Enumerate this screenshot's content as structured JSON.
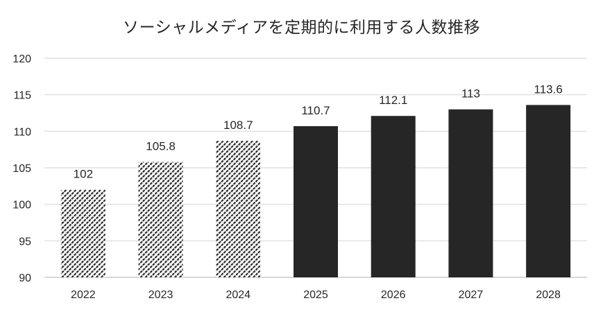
{
  "chart_data": {
    "type": "bar",
    "title": "ソーシャルメディアを定期的に利用する人数推移",
    "xlabel": "",
    "ylabel": "",
    "categories": [
      "2022",
      "2023",
      "2024",
      "2025",
      "2026",
      "2027",
      "2028"
    ],
    "values": [
      102,
      105.8,
      108.7,
      110.7,
      112.1,
      113,
      113.6
    ],
    "data_labels": [
      "102",
      "105.8",
      "108.7",
      "110.7",
      "112.1",
      "113",
      "113.6"
    ],
    "bar_styles": [
      "hatched",
      "hatched",
      "hatched",
      "solid",
      "solid",
      "solid",
      "solid"
    ],
    "ylim": [
      90,
      120
    ],
    "yticks": [
      90,
      95,
      100,
      105,
      110,
      115,
      120
    ],
    "grid": true,
    "legend": "none",
    "colors": {
      "solid_bar": "#262626",
      "hatch": "#262626",
      "grid": "#d9d9d9",
      "axis": "#bfbfbf"
    }
  }
}
